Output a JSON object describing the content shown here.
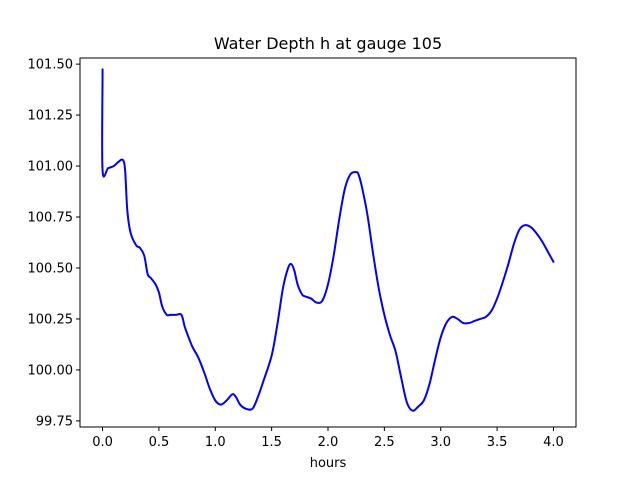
{
  "chart_data": {
    "type": "line",
    "title": "Water Depth h at gauge 105",
    "xlabel": "hours",
    "ylabel": "",
    "xlim": [
      -0.2,
      4.2
    ],
    "ylim": [
      99.72,
      101.53
    ],
    "xticks": [
      0.0,
      0.5,
      1.0,
      1.5,
      2.0,
      2.5,
      3.0,
      3.5,
      4.0
    ],
    "xtick_labels": [
      "0.0",
      "0.5",
      "1.0",
      "1.5",
      "2.0",
      "2.5",
      "3.0",
      "3.5",
      "4.0"
    ],
    "yticks": [
      99.75,
      100.0,
      100.25,
      100.5,
      100.75,
      101.0,
      101.25,
      101.5
    ],
    "ytick_labels": [
      "99.75",
      "100.00",
      "100.25",
      "100.50",
      "100.75",
      "101.00",
      "101.25",
      "101.50"
    ],
    "grid": false,
    "color": "#0000ff",
    "series": [
      {
        "x": [
          0.0,
          0.0,
          0.0,
          0.05,
          0.1,
          0.14,
          0.18,
          0.2,
          0.22,
          0.25,
          0.3,
          0.33,
          0.37,
          0.4,
          0.43,
          0.47,
          0.5,
          0.53,
          0.57,
          0.6,
          0.65,
          0.7,
          0.73,
          0.77,
          0.8,
          0.85,
          0.9,
          0.95,
          1.0,
          1.05,
          1.1,
          1.15,
          1.18,
          1.22,
          1.27,
          1.33,
          1.38,
          1.43,
          1.5,
          1.55,
          1.6,
          1.64,
          1.67,
          1.7,
          1.73,
          1.77,
          1.8,
          1.85,
          1.9,
          1.95,
          2.0,
          2.05,
          2.1,
          2.15,
          2.2,
          2.25,
          2.27,
          2.3,
          2.35,
          2.4,
          2.45,
          2.5,
          2.55,
          2.6,
          2.65,
          2.7,
          2.75,
          2.8,
          2.85,
          2.9,
          2.95,
          3.0,
          3.05,
          3.1,
          3.15,
          3.2,
          3.25,
          3.3,
          3.35,
          3.4,
          3.45,
          3.5,
          3.55,
          3.6,
          3.65,
          3.7,
          3.75,
          3.8,
          3.85,
          3.9,
          3.95,
          4.0
        ],
        "y": [
          101.44,
          101.44,
          100.98,
          100.99,
          101.0,
          101.02,
          101.03,
          100.98,
          100.78,
          100.67,
          100.61,
          100.6,
          100.56,
          100.47,
          100.45,
          100.42,
          100.38,
          100.31,
          100.27,
          100.27,
          100.27,
          100.27,
          100.21,
          100.15,
          100.11,
          100.06,
          99.99,
          99.91,
          99.85,
          99.83,
          99.85,
          99.88,
          99.87,
          99.83,
          99.81,
          99.81,
          99.87,
          99.95,
          100.07,
          100.22,
          100.4,
          100.49,
          100.52,
          100.49,
          100.42,
          100.37,
          100.36,
          100.35,
          100.33,
          100.34,
          100.42,
          100.56,
          100.74,
          100.89,
          100.96,
          100.97,
          100.96,
          100.9,
          100.76,
          100.57,
          100.4,
          100.27,
          100.17,
          100.09,
          99.96,
          99.84,
          99.8,
          99.82,
          99.85,
          99.93,
          100.05,
          100.16,
          100.23,
          100.26,
          100.25,
          100.23,
          100.23,
          100.24,
          100.25,
          100.26,
          100.29,
          100.35,
          100.43,
          100.52,
          100.62,
          100.69,
          100.71,
          100.7,
          100.67,
          100.63,
          100.58,
          100.53
        ]
      }
    ]
  }
}
